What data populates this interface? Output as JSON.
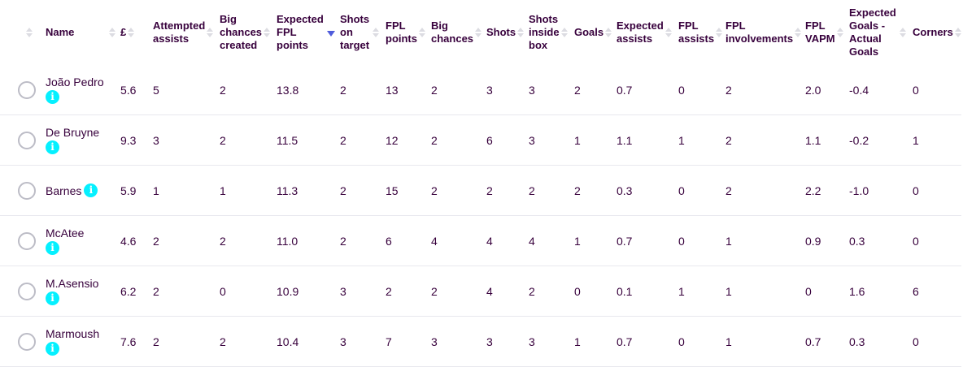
{
  "columns": [
    {
      "key": "select",
      "label": "",
      "sort": "none"
    },
    {
      "key": "name",
      "label": "Name",
      "sort": "both"
    },
    {
      "key": "price",
      "label": "£",
      "sort": "both"
    },
    {
      "key": "attempted_assists",
      "label": "Attempted assists",
      "sort": "both"
    },
    {
      "key": "big_chances_created",
      "label": "Big chances created",
      "sort": "both"
    },
    {
      "key": "expected_fpl_points",
      "label": "Expected FPL points",
      "sort": "desc-active"
    },
    {
      "key": "shots_on_target",
      "label": "Shots on target",
      "sort": "both"
    },
    {
      "key": "fpl_points",
      "label": "FPL points",
      "sort": "both"
    },
    {
      "key": "big_chances",
      "label": "Big chances",
      "sort": "both"
    },
    {
      "key": "shots",
      "label": "Shots",
      "sort": "both"
    },
    {
      "key": "shots_inside_box",
      "label": "Shots inside box",
      "sort": "both"
    },
    {
      "key": "goals",
      "label": "Goals",
      "sort": "both"
    },
    {
      "key": "expected_assists",
      "label": "Expected assists",
      "sort": "both"
    },
    {
      "key": "fpl_assists",
      "label": "FPL assists",
      "sort": "both"
    },
    {
      "key": "fpl_involvements",
      "label": "FPL involvements",
      "sort": "both"
    },
    {
      "key": "fpl_vapm",
      "label": "FPL VAPM",
      "sort": "both"
    },
    {
      "key": "xg_minus_goals",
      "label": "Expected Goals - Actual Goals",
      "sort": "both"
    },
    {
      "key": "corners",
      "label": "Corners",
      "sort": "both"
    }
  ],
  "info_glyph": "i",
  "colors": {
    "text": "#37003c",
    "info": "#05f0ff",
    "sort_active": "#4f5cdb",
    "sort_idle": "#dcdce2",
    "radio": "#bcbcc6",
    "divider": "#e8e8ee"
  },
  "rows": [
    {
      "name": "João Pedro",
      "info_below": true,
      "values": [
        "5.6",
        "5",
        "2",
        "13.8",
        "2",
        "13",
        "2",
        "3",
        "3",
        "2",
        "0.7",
        "0",
        "2",
        "2.0",
        "-0.4",
        "0"
      ]
    },
    {
      "name": "De Bruyne",
      "info_below": true,
      "values": [
        "9.3",
        "3",
        "2",
        "11.5",
        "2",
        "12",
        "2",
        "6",
        "3",
        "1",
        "1.1",
        "1",
        "2",
        "1.1",
        "-0.2",
        "1"
      ]
    },
    {
      "name": "Barnes",
      "info_below": false,
      "values": [
        "5.9",
        "1",
        "1",
        "11.3",
        "2",
        "15",
        "2",
        "2",
        "2",
        "2",
        "0.3",
        "0",
        "2",
        "2.2",
        "-1.0",
        "0"
      ]
    },
    {
      "name": "McAtee",
      "info_below": true,
      "values": [
        "4.6",
        "2",
        "2",
        "11.0",
        "2",
        "6",
        "4",
        "4",
        "4",
        "1",
        "0.7",
        "0",
        "1",
        "0.9",
        "0.3",
        "0"
      ]
    },
    {
      "name": "M.Asensio",
      "info_below": true,
      "values": [
        "6.2",
        "2",
        "0",
        "10.9",
        "3",
        "2",
        "2",
        "4",
        "2",
        "0",
        "0.1",
        "1",
        "1",
        "0",
        "1.6",
        "6"
      ]
    },
    {
      "name": "Marmoush",
      "info_below": true,
      "values": [
        "7.6",
        "2",
        "2",
        "10.4",
        "3",
        "7",
        "3",
        "3",
        "3",
        "1",
        "0.7",
        "0",
        "1",
        "0.7",
        "0.3",
        "0"
      ]
    }
  ]
}
